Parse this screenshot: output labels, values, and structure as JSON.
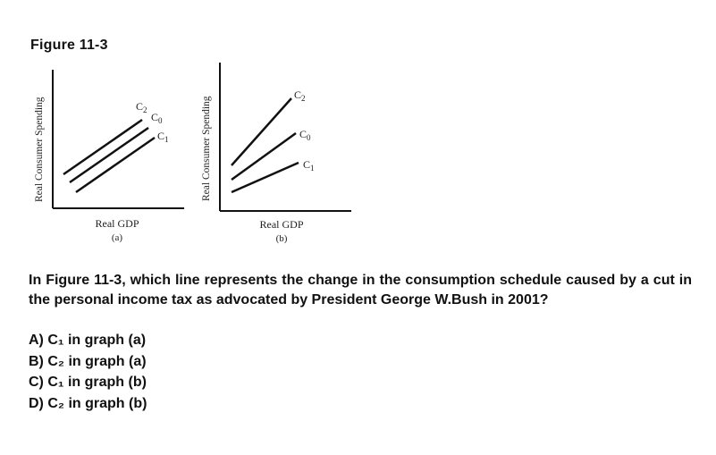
{
  "figure_title": "Figure 11-3",
  "graph_a": {
    "ylabel": "Real Consumer Spending",
    "xlabel": "Real GDP",
    "caption": "(a)",
    "line_labels": [
      "C2",
      "C0",
      "C1"
    ]
  },
  "graph_b": {
    "ylabel": "Real Consumer Spending",
    "xlabel": "Real GDP",
    "caption": "(b)",
    "line_labels": [
      "C2",
      "C0",
      "C1"
    ]
  },
  "question": "In Figure 11-3, which line represents the change in the consumption schedule caused by a cut in the personal income tax as advocated by President George W.Bush in 2001?",
  "answers": [
    {
      "letter": "A)",
      "text": "C₁ in graph (a)"
    },
    {
      "letter": "B)",
      "text": "C₂ in graph (a)"
    },
    {
      "letter": "C)",
      "text": "C₁ in graph (b)"
    },
    {
      "letter": "D)",
      "text": "C₂ in graph (b)"
    }
  ]
}
